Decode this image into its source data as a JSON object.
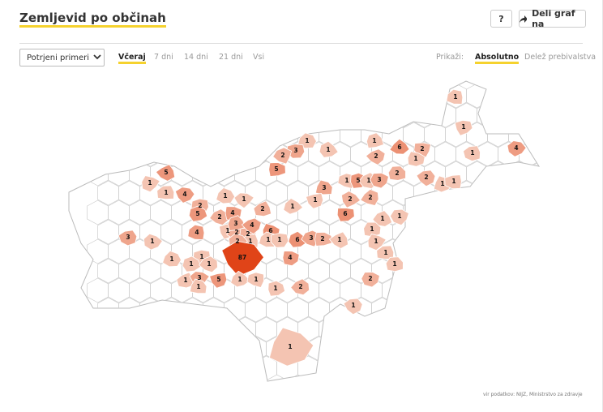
{
  "header": {
    "title": "Zemljevid po občinah",
    "help_button": "?",
    "share_button": "Deli graf na"
  },
  "controls": {
    "dropdown": "Potrjeni primeri",
    "periods": [
      "Včeraj",
      "7 dni",
      "14 dni",
      "21 dni",
      "Vsi"
    ],
    "selected_period": 0,
    "show_label": "Prikaži:",
    "show_options": [
      "Absolutno",
      "Delež prebivalstva"
    ],
    "selected_show": 0
  },
  "map": {
    "values": [
      1,
      1,
      6,
      2,
      1,
      2,
      1,
      1,
      4,
      1,
      3,
      1,
      2,
      5,
      5,
      1,
      1,
      4,
      1,
      2,
      5,
      2,
      4,
      2,
      1,
      3,
      1,
      1,
      1,
      5,
      1,
      3,
      2,
      2,
      1,
      1,
      2,
      2,
      6,
      1,
      1,
      1,
      3,
      1,
      4,
      1,
      2,
      2,
      3,
      4,
      6,
      1,
      2,
      1,
      1,
      6,
      3,
      2,
      1,
      1,
      1,
      87,
      1,
      1,
      1,
      1,
      4,
      1,
      3,
      1,
      5,
      1,
      1,
      1,
      2,
      2,
      1,
      1,
      1
    ],
    "source": "vir podatkov: NIJZ, Ministrstvo za zdravje"
  }
}
